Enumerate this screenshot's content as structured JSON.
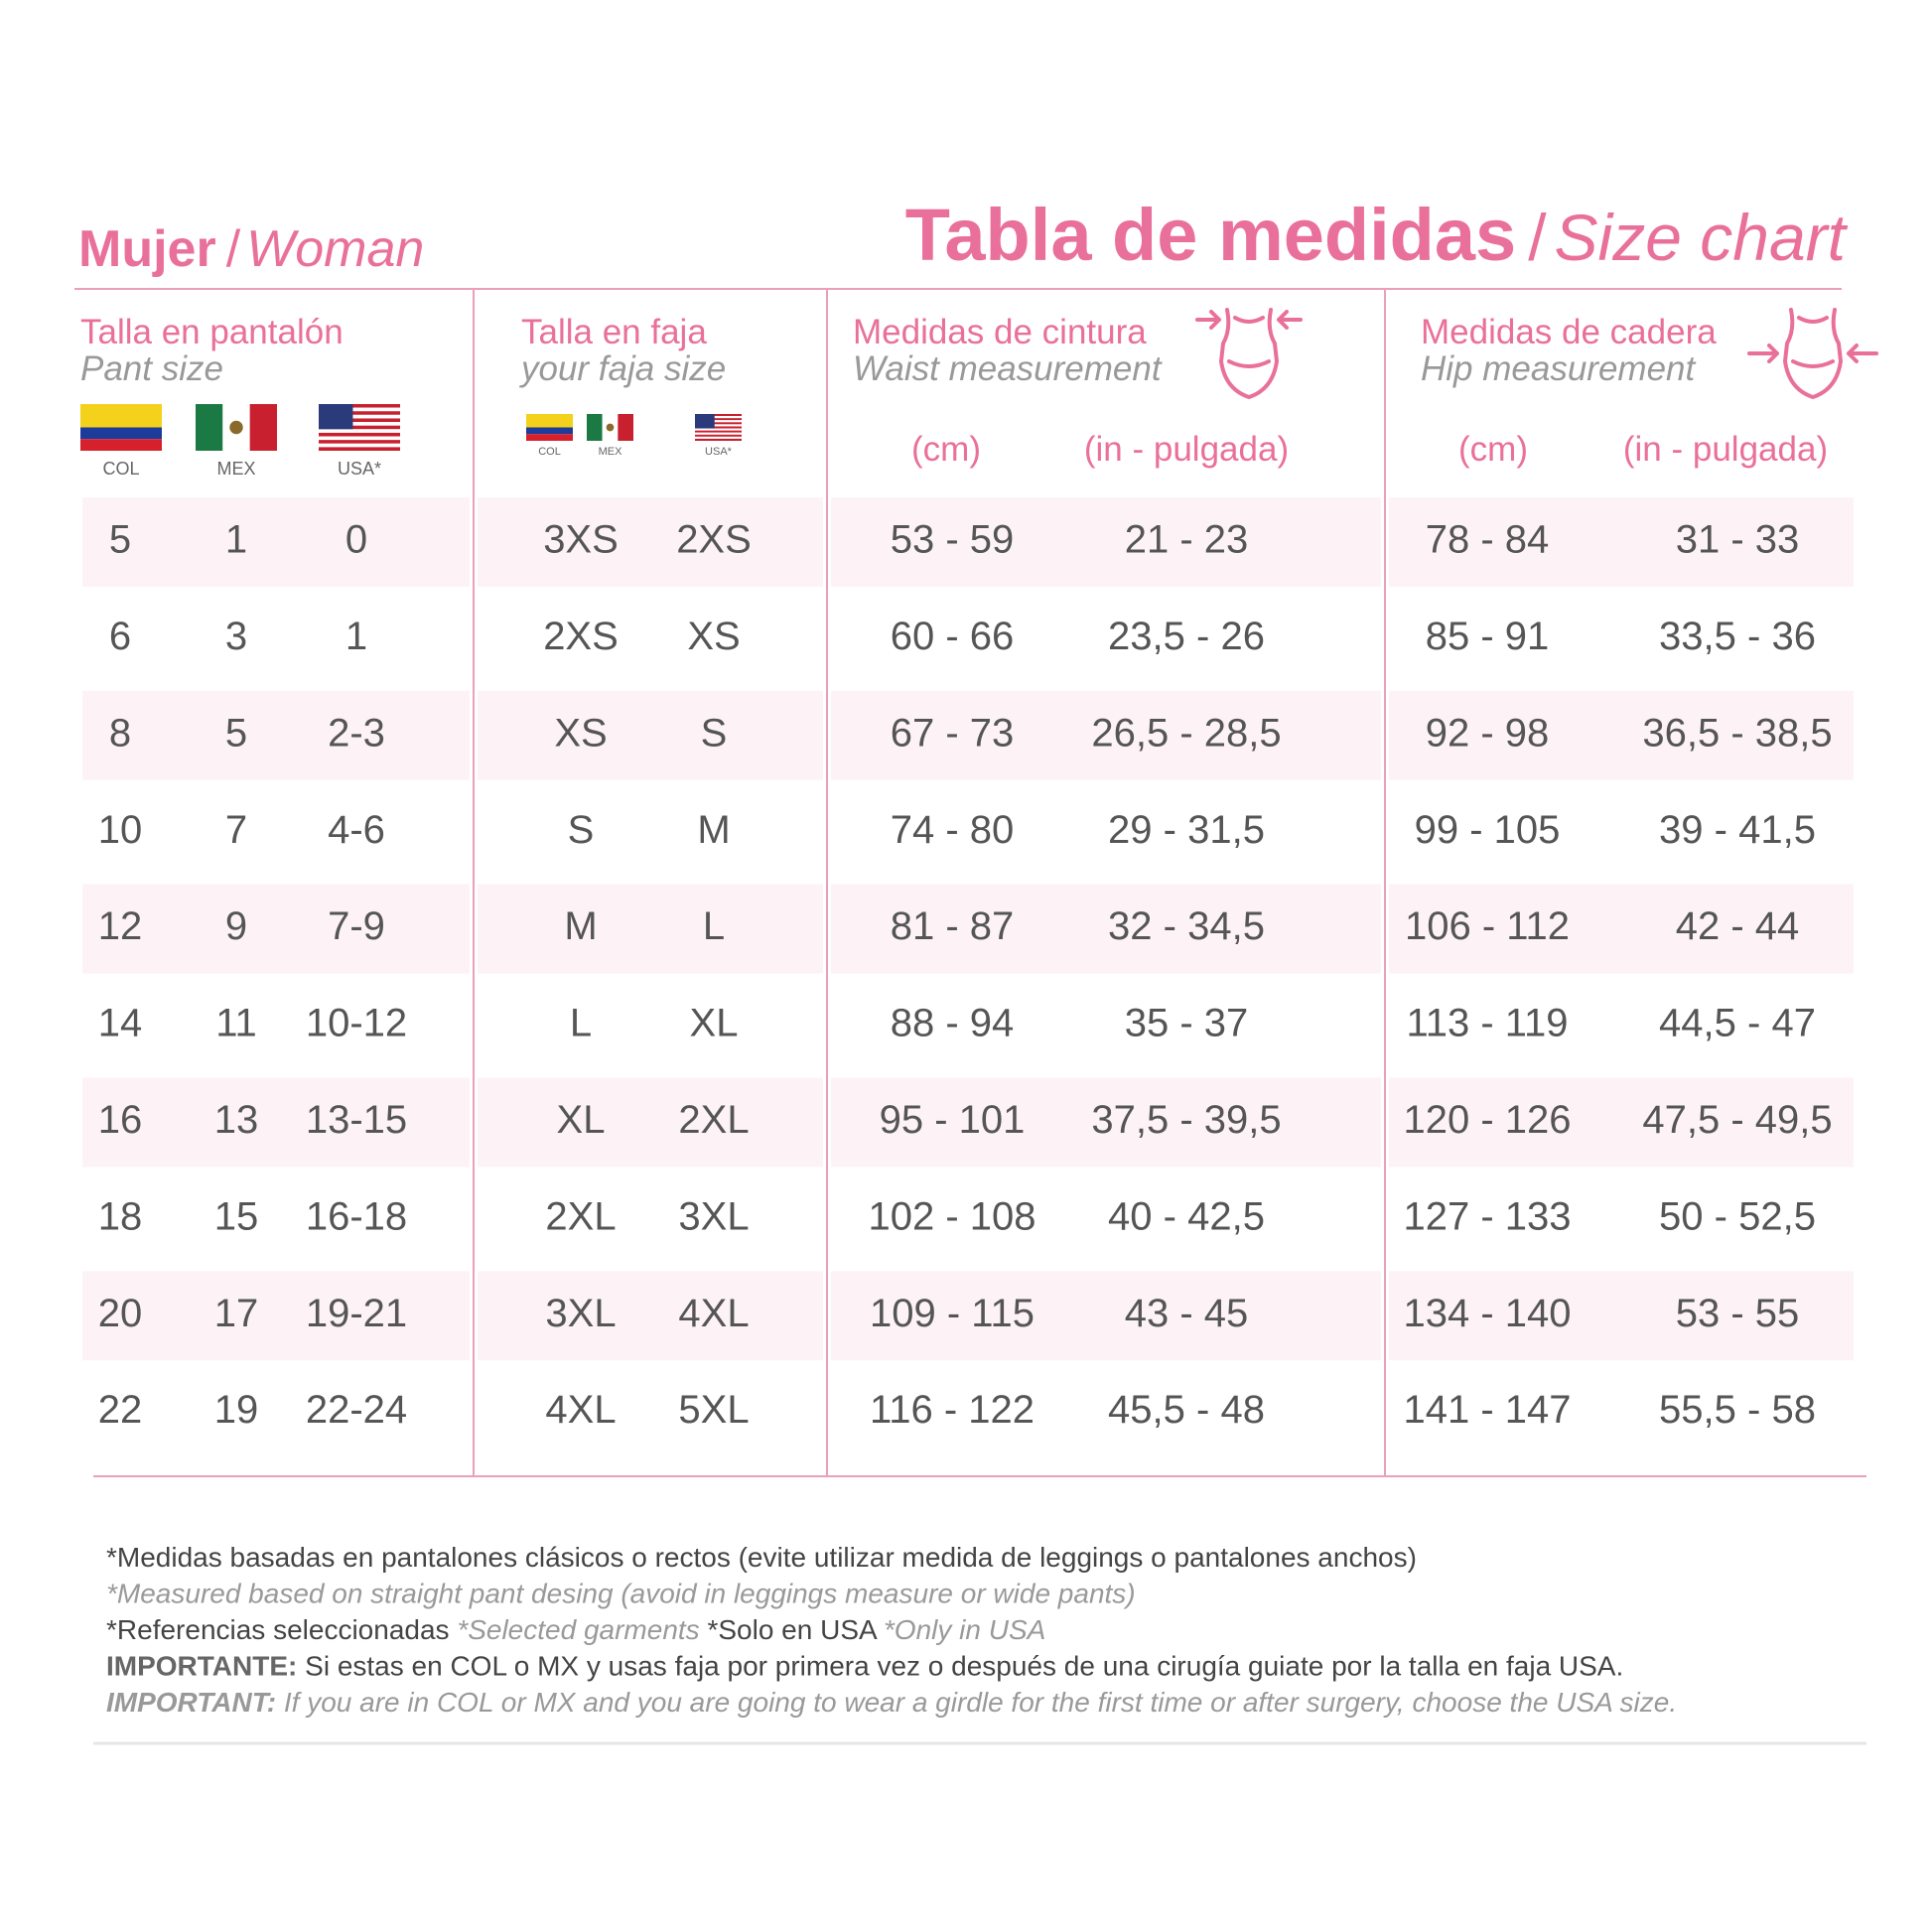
{
  "header": {
    "left": {
      "es": "Mujer",
      "sep": "/",
      "en": "Woman"
    },
    "right": {
      "es": "Tabla de medidas",
      "sep": "/",
      "en": "Size chart"
    }
  },
  "table": {
    "columns": [
      {
        "title": "Talla en pantalón",
        "subtitle": "Pant size",
        "flags": [
          "COL",
          "MEX",
          "USA*"
        ]
      },
      {
        "title": "Talla en faja",
        "subtitle": "your faja size",
        "flags": [
          "COL",
          "MEX",
          "USA*"
        ]
      },
      {
        "title": "Medidas de cintura",
        "subtitle": "Waist measurement",
        "units": [
          "(cm)",
          "(in - pulgada)"
        ]
      },
      {
        "title": "Medidas de cadera",
        "subtitle": "Hip measurement",
        "units": [
          "(cm)",
          "(in - pulgada)"
        ]
      }
    ],
    "rows": [
      [
        "5",
        "1",
        "0",
        "3XS",
        "2XS",
        "53 - 59",
        "21 - 23",
        "78 - 84",
        "31 - 33"
      ],
      [
        "6",
        "3",
        "1",
        "2XS",
        "XS",
        "60 - 66",
        "23,5 - 26",
        "85 - 91",
        "33,5 - 36"
      ],
      [
        "8",
        "5",
        "2-3",
        "XS",
        "S",
        "67 - 73",
        "26,5 - 28,5",
        "92 - 98",
        "36,5 - 38,5"
      ],
      [
        "10",
        "7",
        "4-6",
        "S",
        "M",
        "74 - 80",
        "29 - 31,5",
        "99 - 105",
        "39 - 41,5"
      ],
      [
        "12",
        "9",
        "7-9",
        "M",
        "L",
        "81 - 87",
        "32 - 34,5",
        "106 - 112",
        "42 - 44"
      ],
      [
        "14",
        "11",
        "10-12",
        "L",
        "XL",
        "88 - 94",
        "35 - 37",
        "113 - 119",
        "44,5 - 47"
      ],
      [
        "16",
        "13",
        "13-15",
        "XL",
        "2XL",
        "95 - 101",
        "37,5 - 39,5",
        "120 - 126",
        "47,5 - 49,5"
      ],
      [
        "18",
        "15",
        "16-18",
        "2XL",
        "3XL",
        "102 - 108",
        "40 - 42,5",
        "127 - 133",
        "50 - 52,5"
      ],
      [
        "20",
        "17",
        "19-21",
        "3XL",
        "4XL",
        "109 - 115",
        "43 - 45",
        "134 - 140",
        "53 - 55"
      ],
      [
        "22",
        "19",
        "22-24",
        "4XL",
        "5XL",
        "116 - 122",
        "45,5 - 48",
        "141 - 147",
        "55,5 - 58"
      ]
    ]
  },
  "notes": [
    [
      {
        "text": "*Medidas basadas en pantalones clásicos o rectos (evite utilizar medida de leggings o pantalones anchos)",
        "style": "regular"
      }
    ],
    [
      {
        "text": "*Measured based on straight pant desing (avoid in leggings measure or wide pants)",
        "style": "italic-light"
      }
    ],
    [
      {
        "text": "*Referencias seleccionadas ",
        "style": "regular"
      },
      {
        "text": "*Selected garments",
        "style": "italic-light"
      },
      {
        "text": " *Solo en USA ",
        "style": "regular"
      },
      {
        "text": "*Only in USA",
        "style": "italic-light"
      }
    ],
    [
      {
        "text": "IMPORTANTE:",
        "style": "bold"
      },
      {
        "text": " Si estas en COL o MX y usas faja por primera vez o después de una cirugía guiate por la talla en faja USA.",
        "style": "regular"
      }
    ],
    [
      {
        "text": "IMPORTANT:",
        "style": "bold-italic-light"
      },
      {
        "text": " If you are in COL or MX and you are going to wear a girdle for the first time or after surgery, choose the USA size.",
        "style": "italic-light"
      }
    ]
  ]
}
